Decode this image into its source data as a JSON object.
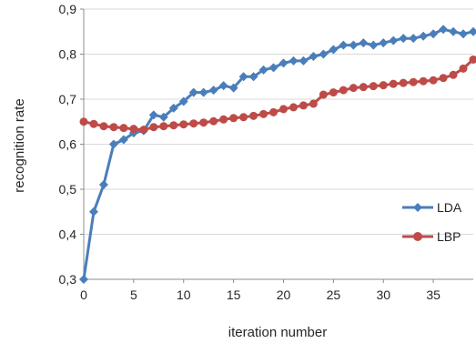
{
  "chart_data": {
    "type": "line",
    "title": "",
    "xlabel": "iteration number",
    "ylabel": "recognition rate",
    "xlim": [
      0,
      39
    ],
    "ylim": [
      0.3,
      0.9
    ],
    "x_ticks": [
      0,
      5,
      10,
      15,
      20,
      25,
      30,
      35
    ],
    "x_tick_labels": [
      "0",
      "5",
      "10",
      "15",
      "20",
      "25",
      "30",
      "35"
    ],
    "y_ticks": [
      0.3,
      0.4,
      0.5,
      0.6,
      0.7,
      0.8,
      0.9
    ],
    "y_tick_labels": [
      "0,3",
      "0,4",
      "0,5",
      "0,6",
      "0,7",
      "0,8",
      "0,9"
    ],
    "grid": "horizontal",
    "legend_position": "right",
    "x": [
      0,
      1,
      2,
      3,
      4,
      5,
      6,
      7,
      8,
      9,
      10,
      11,
      12,
      13,
      14,
      15,
      16,
      17,
      18,
      19,
      20,
      21,
      22,
      23,
      24,
      25,
      26,
      27,
      28,
      29,
      30,
      31,
      32,
      33,
      34,
      35,
      36,
      37,
      38,
      39
    ],
    "series": [
      {
        "name": "LDA",
        "color": "#4a7ebb",
        "marker": "diamond",
        "values": [
          0.3,
          0.45,
          0.51,
          0.6,
          0.61,
          0.625,
          0.63,
          0.665,
          0.66,
          0.68,
          0.695,
          0.715,
          0.715,
          0.72,
          0.73,
          0.725,
          0.75,
          0.75,
          0.765,
          0.77,
          0.78,
          0.785,
          0.785,
          0.795,
          0.8,
          0.81,
          0.82,
          0.82,
          0.825,
          0.82,
          0.825,
          0.83,
          0.835,
          0.835,
          0.84,
          0.845,
          0.855,
          0.85,
          0.845,
          0.85
        ]
      },
      {
        "name": "LBP",
        "color": "#be4b48",
        "marker": "circle",
        "values": [
          0.65,
          0.645,
          0.64,
          0.638,
          0.636,
          0.634,
          0.632,
          0.638,
          0.64,
          0.642,
          0.644,
          0.646,
          0.648,
          0.651,
          0.655,
          0.658,
          0.66,
          0.663,
          0.667,
          0.671,
          0.678,
          0.682,
          0.686,
          0.69,
          0.71,
          0.715,
          0.72,
          0.725,
          0.727,
          0.729,
          0.731,
          0.734,
          0.736,
          0.738,
          0.74,
          0.742,
          0.747,
          0.754,
          0.768,
          0.788
        ]
      }
    ]
  }
}
